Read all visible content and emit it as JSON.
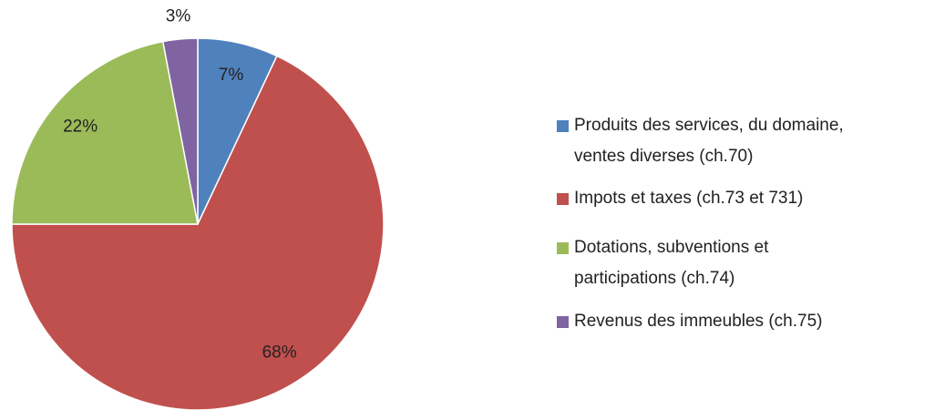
{
  "chart_data": {
    "type": "pie",
    "categories": [
      "Produits des services, du domaine, ventes diverses (ch.70)",
      "Impots et taxes (ch.73 et 731)",
      "Dotations, subventions et participations (ch.74)",
      "Revenus des immeubles (ch.75)"
    ],
    "values": [
      7,
      68,
      22,
      3
    ],
    "value_labels": [
      "7%",
      "68%",
      "22%",
      "3%"
    ],
    "colors": [
      "#4f81bd",
      "#c0504d",
      "#9bbb59",
      "#8064a2"
    ],
    "legend": "right"
  }
}
